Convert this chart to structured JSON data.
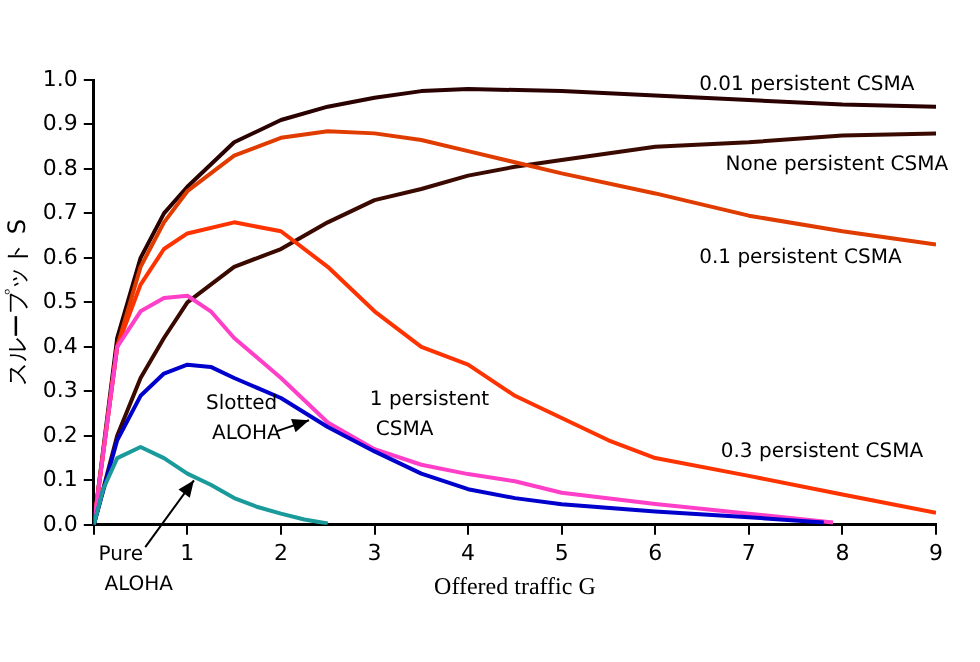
{
  "chart_data": {
    "type": "line",
    "xlabel": "Offered traffic G",
    "ylabel": "スループット S",
    "xlim": [
      0,
      9
    ],
    "xticks": [
      {
        "value": 0,
        "label": null
      },
      1,
      2,
      3,
      4,
      5,
      6,
      7,
      8,
      9
    ],
    "ylim": [
      0,
      1
    ],
    "yticks": [
      {
        "value": 0,
        "label": "0.0"
      },
      0.1,
      0.2,
      0.3,
      0.4,
      0.5,
      0.6,
      0.7,
      0.8,
      0.9,
      {
        "value": 1,
        "label": "1.0"
      }
    ],
    "grid": false,
    "legend": false,
    "marker": "none",
    "line_style": "solid",
    "series": [
      {
        "name": "Pure ALOHA",
        "color": "#1a9a9a",
        "x": [
          0,
          0.1,
          0.25,
          0.5,
          0.75,
          1,
          1.25,
          1.5,
          1.75,
          2,
          2.25,
          2.5
        ],
        "values": [
          0,
          0.08,
          0.15,
          0.175,
          0.15,
          0.115,
          0.09,
          0.06,
          0.04,
          0.025,
          0.012,
          0.003
        ]
      },
      {
        "name": "Slotted ALOHA",
        "color": "#0000cc",
        "x": [
          0,
          0.25,
          0.5,
          0.75,
          1,
          1.25,
          1.5,
          2,
          2.5,
          3,
          3.5,
          4,
          4.5,
          5,
          6,
          7,
          7.8
        ],
        "values": [
          0,
          0.19,
          0.29,
          0.34,
          0.36,
          0.355,
          0.33,
          0.285,
          0.22,
          0.165,
          0.115,
          0.08,
          0.06,
          0.046,
          0.03,
          0.017,
          0.005
        ]
      },
      {
        "name": "1 persistent CSMA",
        "color": "#ff3fc8",
        "x": [
          0,
          0.25,
          0.5,
          0.75,
          1,
          1.25,
          1.5,
          2,
          2.5,
          3,
          3.5,
          4,
          4.5,
          5,
          6,
          7,
          7.9
        ],
        "values": [
          0,
          0.4,
          0.48,
          0.51,
          0.515,
          0.48,
          0.42,
          0.33,
          0.23,
          0.17,
          0.135,
          0.114,
          0.098,
          0.072,
          0.047,
          0.025,
          0.005
        ]
      },
      {
        "name": "0.3 persistent CSMA",
        "color": "#ff3300",
        "x": [
          0,
          0.25,
          0.5,
          0.75,
          1,
          1.5,
          2,
          2.5,
          3,
          3.5,
          4,
          4.5,
          5,
          5.5,
          6,
          7,
          8,
          9
        ],
        "values": [
          0,
          0.4,
          0.54,
          0.62,
          0.655,
          0.68,
          0.66,
          0.58,
          0.48,
          0.4,
          0.36,
          0.29,
          0.24,
          0.19,
          0.15,
          0.11,
          0.068,
          0.027
        ]
      },
      {
        "name": "0.1 persistent CSMA",
        "color": "#e03c00",
        "x": [
          0,
          0.25,
          0.5,
          0.75,
          1,
          1.5,
          2,
          2.5,
          3,
          3.5,
          4,
          4.5,
          5,
          6,
          7,
          8,
          9
        ],
        "values": [
          0,
          0.4,
          0.58,
          0.68,
          0.75,
          0.83,
          0.87,
          0.885,
          0.88,
          0.865,
          0.84,
          0.815,
          0.79,
          0.745,
          0.695,
          0.66,
          0.63
        ]
      },
      {
        "name": "None persistent CSMA",
        "color": "#3a0a00",
        "x": [
          0,
          0.25,
          0.5,
          0.75,
          1,
          1.5,
          2,
          2.5,
          3,
          3.5,
          4,
          4.5,
          5,
          6,
          7,
          8,
          9
        ],
        "values": [
          0,
          0.2,
          0.33,
          0.42,
          0.5,
          0.58,
          0.62,
          0.68,
          0.73,
          0.755,
          0.785,
          0.805,
          0.82,
          0.85,
          0.86,
          0.875,
          0.88
        ]
      },
      {
        "name": "0.01 persistent CSMA",
        "color": "#2a0000",
        "x": [
          0,
          0.25,
          0.5,
          0.75,
          1,
          1.5,
          2,
          2.5,
          3,
          3.5,
          4,
          5,
          6,
          7,
          8,
          9
        ],
        "values": [
          0,
          0.42,
          0.6,
          0.7,
          0.76,
          0.86,
          0.91,
          0.94,
          0.96,
          0.975,
          0.98,
          0.975,
          0.965,
          0.955,
          0.945,
          0.94
        ]
      }
    ]
  }
}
